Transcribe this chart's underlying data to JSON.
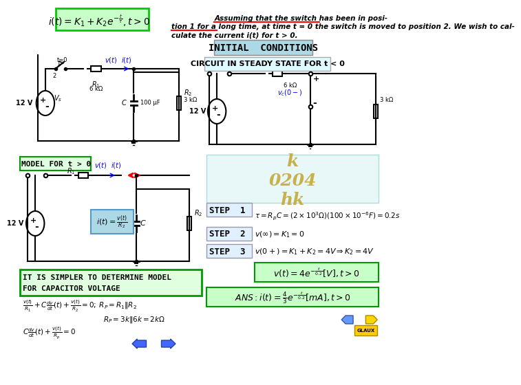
{
  "bg_color": "#FFFFFF",
  "title_box_color": "#ADD8E6",
  "green_box_color": "#90EE90",
  "cyan_box_color": "#E0F8F8",
  "yellow_box_color": "#FFFF99",
  "green_border_color": "#00AA00",
  "cyan_border_color": "#00CCCC",
  "red_color": "#FF0000",
  "blue_color": "#0000FF",
  "dark_color": "#000000",
  "gold_color": "#FFD700",
  "header_text": "INITIAL  CONDITIONS",
  "circuit_steady_text": "CIRCUIT IN STEADY STATE FOR t < 0",
  "step1_label": "STEP  1",
  "step1_eq": "$\\tau = R_p C = (2 \\times 10^3 \\Omega)(100 \\times 10^{-6} F) = 0.2s$",
  "step2_label": "STEP  2",
  "step2_eq": "$v(\\infty) = K_1 = 0$",
  "step3_label": "STEP  3",
  "step3_eq": "$v(0+) = K_1 + K_2 = 4V \\Rightarrow K_2 = 4V$",
  "vt_eq": "$v(t) = 4e^{-\\frac{t}{0.2}}[V], t > 0$",
  "ans_eq": "$ANS: i(t) = \\frac{4}{3}e^{-\\frac{t}{0.2}}[mA], t > 0$",
  "it_eq": "$i(t) = K_1 + K_2 e^{-\\frac{t}{\\tau}}, t > 0$",
  "problem_text1": "Assuming that the switch has been in posi-",
  "problem_text2": "tion 1 for a long time, at time t = 0 the switch is moved to position 2. We wish to cal-",
  "problem_text3": "culate the current i(t) for t > 0.",
  "model_text": "MODEL FOR t > 0",
  "simpler_text1": "IT IS SIMPLER TO DETERMINE MODEL",
  "simpler_text2": "FOR CAPACITOR VOLTAGE",
  "kvl_eq1": "$\\frac{v(t)}{R_1} + C\\frac{dv}{dt}(t) + \\frac{v(t)}{R_2} = 0;\\; R_P = R_1 \\| R_2$",
  "kvl_eq2": "$R_P = 3k \\| 6k = 2k\\Omega$",
  "kvl_eq3": "$C\\frac{dv}{dt}(t) + \\frac{v(t)}{R_p} = 0$",
  "it_formula": "$i(t) = \\frac{v(t)}{R_2}$"
}
